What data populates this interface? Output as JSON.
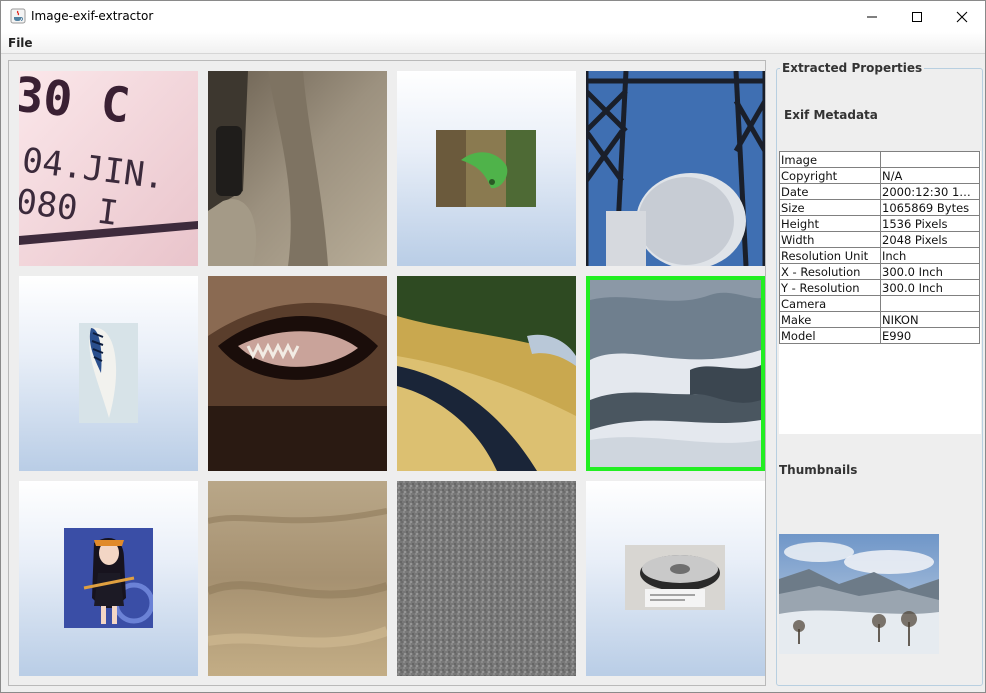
{
  "window": {
    "title": "Image-exif-extractor",
    "icon": "java-coffee-icon"
  },
  "menu": {
    "file": "File"
  },
  "gallery": {
    "tiles": [
      {
        "name": "macro-text-photo",
        "selected": false
      },
      {
        "name": "jacket-pocket-photo",
        "selected": false
      },
      {
        "name": "chameleon-photo",
        "selected": false
      },
      {
        "name": "antenna-tower-photo",
        "selected": false
      },
      {
        "name": "feather-photo",
        "selected": false
      },
      {
        "name": "dog-mouth-photo",
        "selected": false
      },
      {
        "name": "car-fender-photo",
        "selected": false
      },
      {
        "name": "snowy-valley-photo",
        "selected": true
      },
      {
        "name": "anime-girl-image",
        "selected": false
      },
      {
        "name": "sand-texture-photo",
        "selected": false
      },
      {
        "name": "gray-noise-photo",
        "selected": false
      },
      {
        "name": "film-reel-photo",
        "selected": false
      }
    ]
  },
  "sidebar": {
    "title": "Extracted Properties",
    "exif_title": "Exif Metadata",
    "rows": [
      {
        "key": "Image",
        "value": ""
      },
      {
        "key": "Copyright",
        "value": "N/A"
      },
      {
        "key": "Date",
        "value": "2000:12:30 10:..."
      },
      {
        "key": "Size",
        "value": "1065869 Bytes"
      },
      {
        "key": "Height",
        "value": "1536 Pixels"
      },
      {
        "key": "Width",
        "value": "2048 Pixels"
      },
      {
        "key": "Resolution Unit",
        "value": "Inch"
      },
      {
        "key": "X - Resolution",
        "value": "300.0 Inch"
      },
      {
        "key": "Y - Resolution",
        "value": "300.0 Inch"
      },
      {
        "key": "Camera",
        "value": ""
      },
      {
        "key": "Make",
        "value": "NIKON"
      },
      {
        "key": "Model",
        "value": "E990"
      }
    ],
    "thumbnails_title": "Thumbnails"
  },
  "colors": {
    "selection": "#22ee22",
    "tile_gradient_bottom": "#b9cde6",
    "panel_border": "#b8cfe0"
  }
}
